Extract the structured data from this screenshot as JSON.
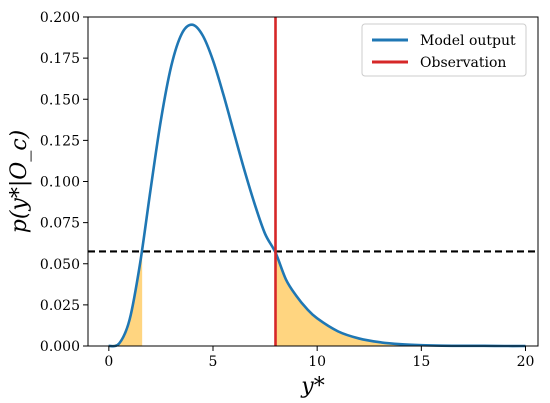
{
  "chart_data": {
    "type": "line",
    "xlabel": "y*",
    "ylabel": "p(y*|O_c)",
    "xlim": [
      -1.0,
      20.6
    ],
    "ylim": [
      0.0,
      0.2
    ],
    "xticks": [
      0,
      5,
      10,
      15,
      20
    ],
    "yticks": [
      0.0,
      0.025,
      0.05,
      0.075,
      0.1,
      0.125,
      0.15,
      0.175,
      0.2
    ],
    "ytick_labels": [
      "0.000",
      "0.025",
      "0.050",
      "0.075",
      "0.100",
      "0.125",
      "0.150",
      "0.175",
      "0.200"
    ],
    "grid": false,
    "legend_position": "top-right",
    "series": [
      {
        "name": "Model output",
        "color": "#1f77b4",
        "x": [
          0.0,
          0.5,
          1.0,
          1.5,
          2.0,
          2.5,
          3.0,
          3.5,
          4.0,
          4.5,
          5.0,
          5.5,
          6.0,
          6.5,
          7.0,
          7.5,
          8.0,
          8.5,
          9.0,
          9.5,
          10.0,
          11.0,
          12.0,
          13.0,
          14.0,
          15.0,
          16.0,
          17.0,
          18.0,
          19.0,
          20.0
        ],
        "y": [
          0.0,
          0.0016,
          0.0162,
          0.0502,
          0.0948,
          0.1374,
          0.1704,
          0.1898,
          0.1953,
          0.1889,
          0.1736,
          0.1528,
          0.1299,
          0.1072,
          0.0863,
          0.0682,
          0.0568,
          0.0405,
          0.0305,
          0.0227,
          0.0168,
          0.0089,
          0.0046,
          0.0023,
          0.0011,
          0.0005,
          0.0002,
          0.0001,
          0.0001,
          0.0,
          0.0
        ]
      }
    ],
    "observation": {
      "name": "Observation",
      "x": 8.0,
      "color": "#d62728"
    },
    "threshold": {
      "y": 0.0575,
      "color": "#000000",
      "style": "dashed"
    },
    "shaded_regions": [
      {
        "x_from": 0.0,
        "x_to": 1.6,
        "color": "#ffd580"
      },
      {
        "x_from": 8.0,
        "x_to": 20.0,
        "color": "#ffd580"
      }
    ]
  }
}
